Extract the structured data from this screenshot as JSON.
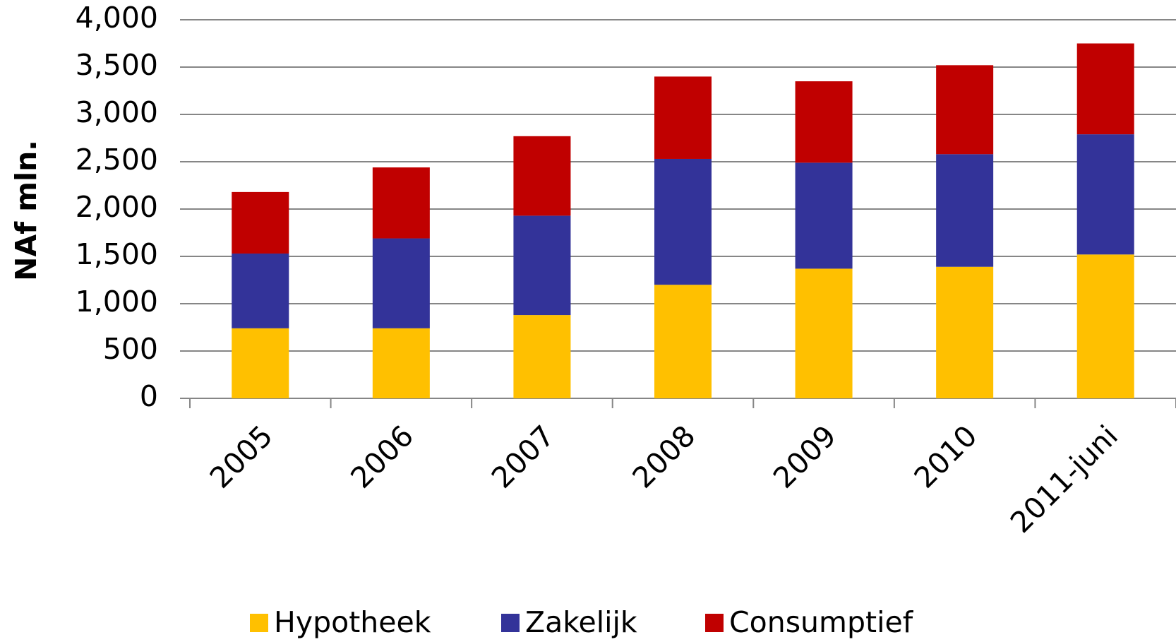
{
  "chart_data": {
    "type": "stacked_bar",
    "y_label": "NAf mln.",
    "categories": [
      "2005",
      "2006",
      "2007",
      "2008",
      "2009",
      "2010",
      "2011-juni"
    ],
    "series": [
      {
        "name": "Hypotheek",
        "color": "#ffc000",
        "values": [
          740,
          740,
          880,
          1200,
          1370,
          1390,
          1520
        ]
      },
      {
        "name": "Zakelijk",
        "color": "#333399",
        "values": [
          790,
          950,
          1050,
          1330,
          1120,
          1190,
          1270
        ]
      },
      {
        "name": "Consumptief",
        "color": "#c00000",
        "values": [
          650,
          750,
          840,
          870,
          860,
          940,
          960
        ]
      }
    ],
    "ylim": [
      0,
      4000
    ],
    "yticks": [
      0,
      500,
      {
        "value": 1000,
        "label": "1,000"
      },
      {
        "value": 1500,
        "label": "1,500"
      },
      {
        "value": 2000,
        "label": "2,000"
      },
      {
        "value": 2500,
        "label": "2,500"
      },
      {
        "value": 3000,
        "label": "3,000"
      },
      {
        "value": 3500,
        "label": "3,500"
      },
      {
        "value": 4000,
        "label": "4,000"
      }
    ],
    "grid": true,
    "legend": "bottom"
  }
}
